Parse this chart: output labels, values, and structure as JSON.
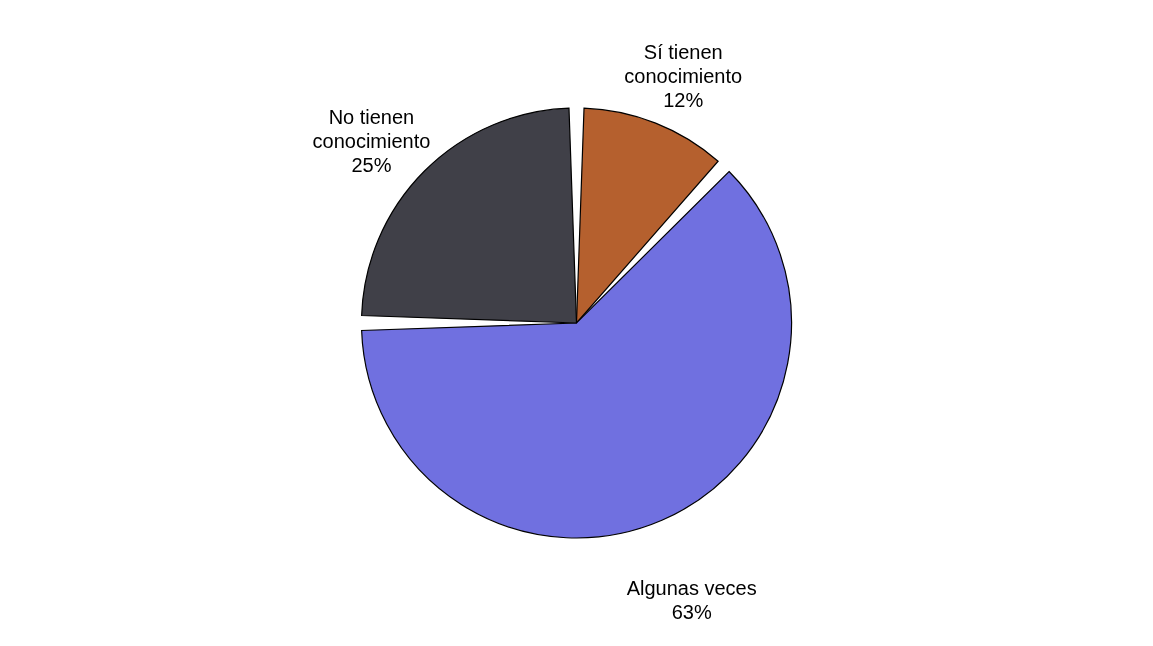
{
  "chart_data": {
    "type": "pie",
    "categories": [
      "Sí tienen conocimiento",
      "Algunas veces",
      "No tienen conocimiento"
    ],
    "values": [
      12,
      63,
      25
    ],
    "value_labels": [
      "12%",
      "63%",
      "25%"
    ],
    "colors": [
      "#b5602e",
      "#7070e0",
      "#404048"
    ]
  }
}
